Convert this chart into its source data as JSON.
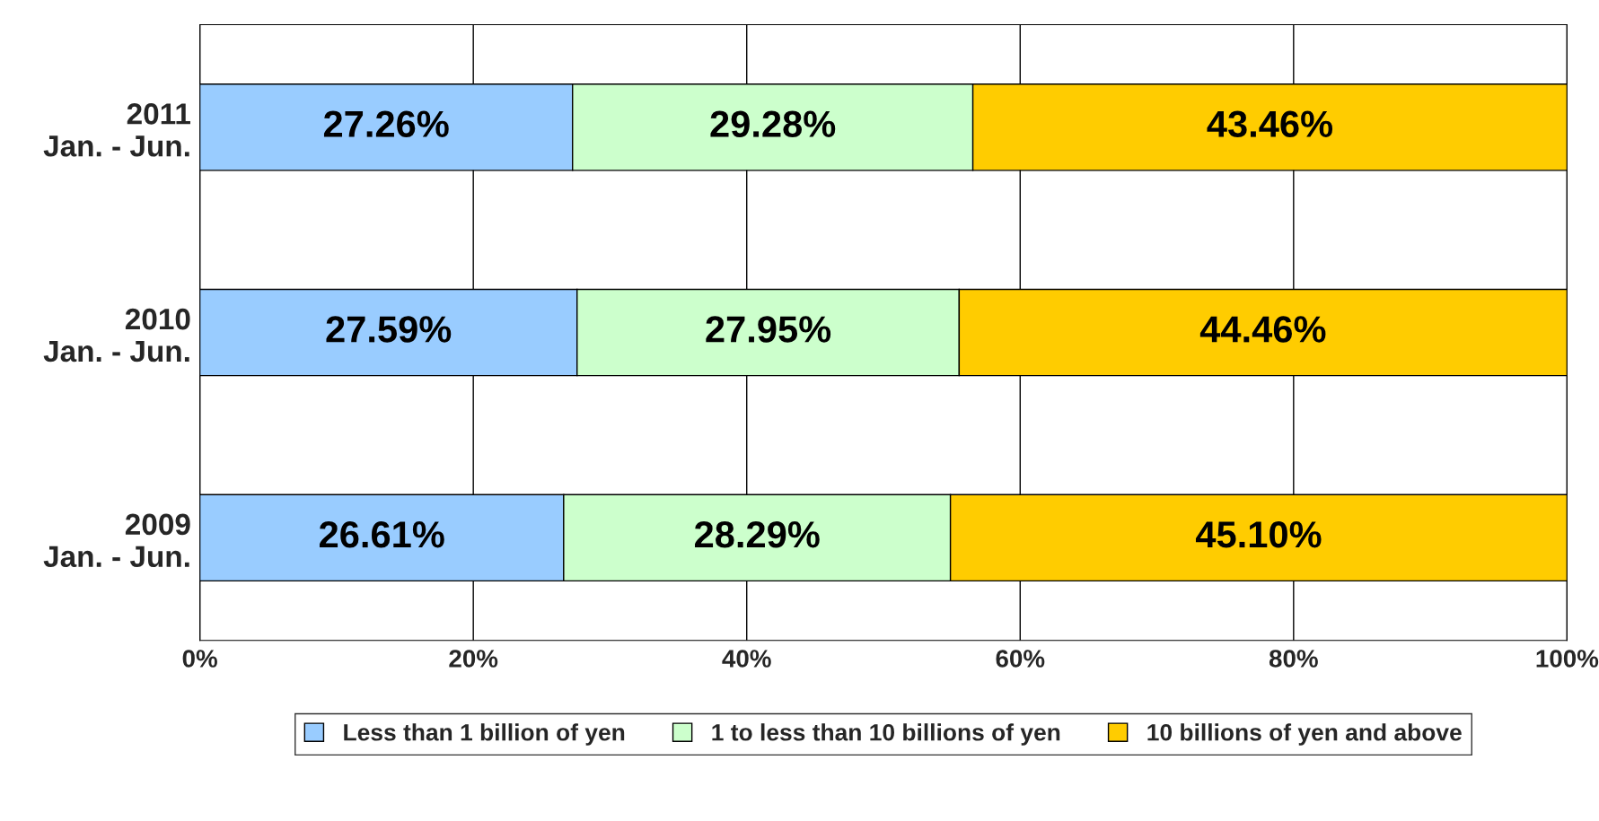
{
  "chart_data": {
    "type": "bar",
    "orientation": "horizontal",
    "stacked": true,
    "categories": [
      "2011\nJan. - Jun.",
      "2010\nJan. - Jun.",
      "2009\nJan. - Jun."
    ],
    "series": [
      {
        "name": "Less than 1 billion of yen",
        "color": "#99ccff",
        "values": [
          27.26,
          27.59,
          26.61
        ],
        "value_labels": [
          "27.26%",
          "27.59%",
          "26.61%"
        ]
      },
      {
        "name": "1 to less than 10 billions of yen",
        "color": "#ccffcc",
        "values": [
          29.28,
          27.95,
          28.29
        ],
        "value_labels": [
          "29.28%",
          "27.95%",
          "28.29%"
        ]
      },
      {
        "name": "10 billions of yen and above",
        "color": "#ffcc00",
        "values": [
          43.46,
          44.46,
          45.1
        ],
        "value_labels": [
          "43.46%",
          "44.46%",
          "45.10%"
        ]
      }
    ],
    "xlim": [
      0,
      100
    ],
    "xticks": [
      {
        "value": 0,
        "label": "0%"
      },
      {
        "value": 20,
        "label": "20%"
      },
      {
        "value": 40,
        "label": "40%"
      },
      {
        "value": 60,
        "label": "60%"
      },
      {
        "value": 80,
        "label": "80%"
      },
      {
        "value": 100,
        "label": "100%"
      }
    ],
    "grid": "x",
    "legend": "bottom"
  }
}
